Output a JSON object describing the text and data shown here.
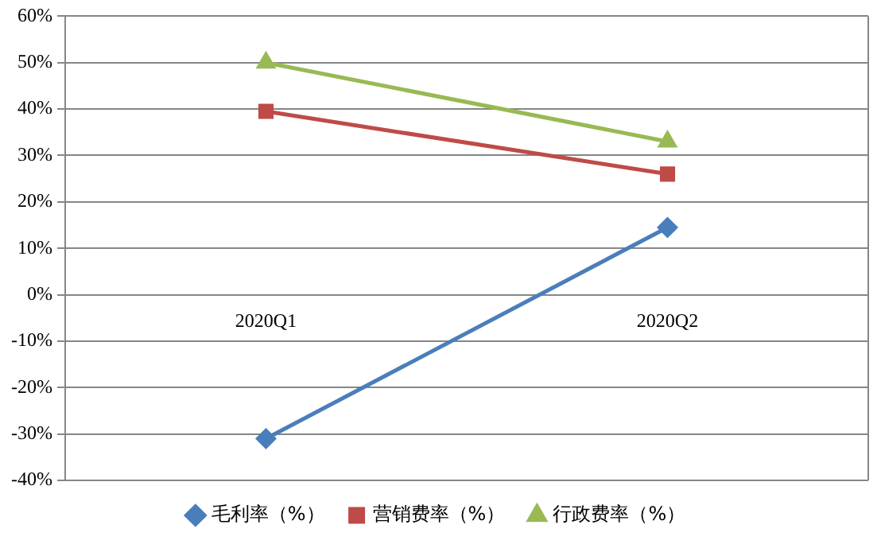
{
  "chart_data": {
    "type": "line",
    "categories": [
      "2020Q1",
      "2020Q2"
    ],
    "series": [
      {
        "name": "毛利率（%）",
        "color": "#4a7ebb",
        "values": [
          -31,
          14.5
        ],
        "marker": "diamond"
      },
      {
        "name": "营销费率（%）",
        "color": "#be4b48",
        "values": [
          39.5,
          26
        ],
        "marker": "square"
      },
      {
        "name": "行政费率（%）",
        "color": "#98b954",
        "values": [
          50,
          33
        ],
        "marker": "triangle"
      }
    ],
    "ylim": [
      -40,
      60
    ],
    "yticks": [
      {
        "value": -40,
        "label": "-40%"
      },
      {
        "value": -30,
        "label": "-30%"
      },
      {
        "value": -20,
        "label": "-20%"
      },
      {
        "value": -10,
        "label": "-10%"
      },
      {
        "value": 0,
        "label": "0%"
      },
      {
        "value": 10,
        "label": "10%"
      },
      {
        "value": 20,
        "label": "20%"
      },
      {
        "value": 30,
        "label": "30%"
      },
      {
        "value": 40,
        "label": "40%"
      },
      {
        "value": 50,
        "label": "50%"
      },
      {
        "value": 60,
        "label": "60%"
      }
    ],
    "grid": "y",
    "legend": "bottom",
    "line_style": "solid"
  }
}
